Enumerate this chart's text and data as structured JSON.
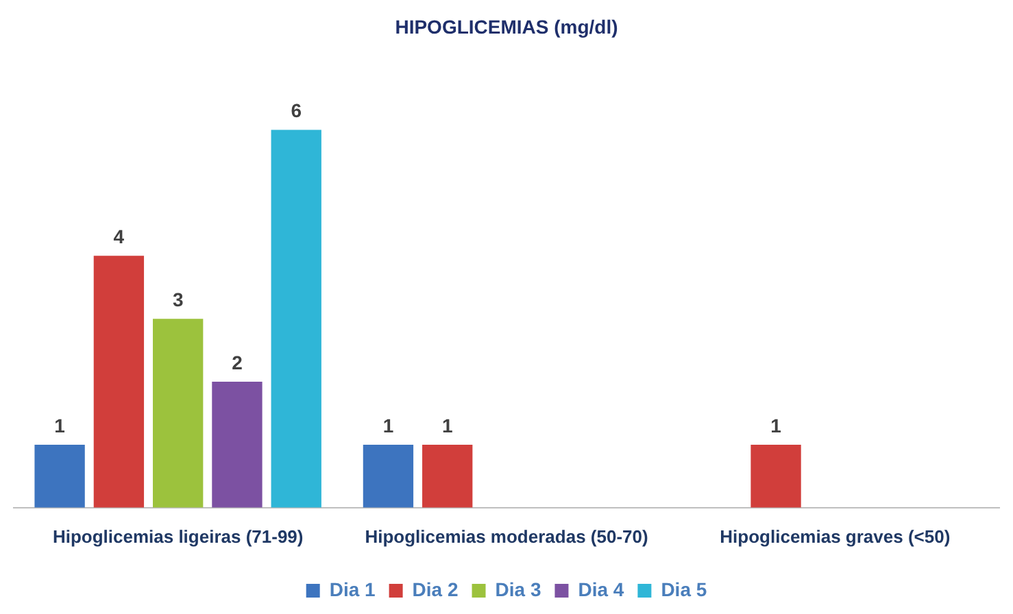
{
  "chart_data": {
    "type": "bar",
    "title": "HIPOGLICEMIAS (mg/dl)",
    "categories": [
      "Hipoglicemias ligeiras (71-99)",
      "Hipoglicemias moderadas (50-70)",
      "Hipoglicemias graves (<50)"
    ],
    "series": [
      {
        "name": "Dia 1",
        "color": "#3d74bf",
        "values": [
          1,
          1,
          null
        ]
      },
      {
        "name": "Dia 2",
        "color": "#d13e3b",
        "values": [
          4,
          1,
          1
        ]
      },
      {
        "name": "Dia 3",
        "color": "#9cc23d",
        "values": [
          3,
          null,
          null
        ]
      },
      {
        "name": "Dia 4",
        "color": "#7c51a2",
        "values": [
          2,
          null,
          null
        ]
      },
      {
        "name": "Dia 5",
        "color": "#2fb6d7",
        "values": [
          6,
          null,
          null
        ]
      }
    ],
    "data_labels": true,
    "grid": false,
    "legend": "bottom"
  }
}
